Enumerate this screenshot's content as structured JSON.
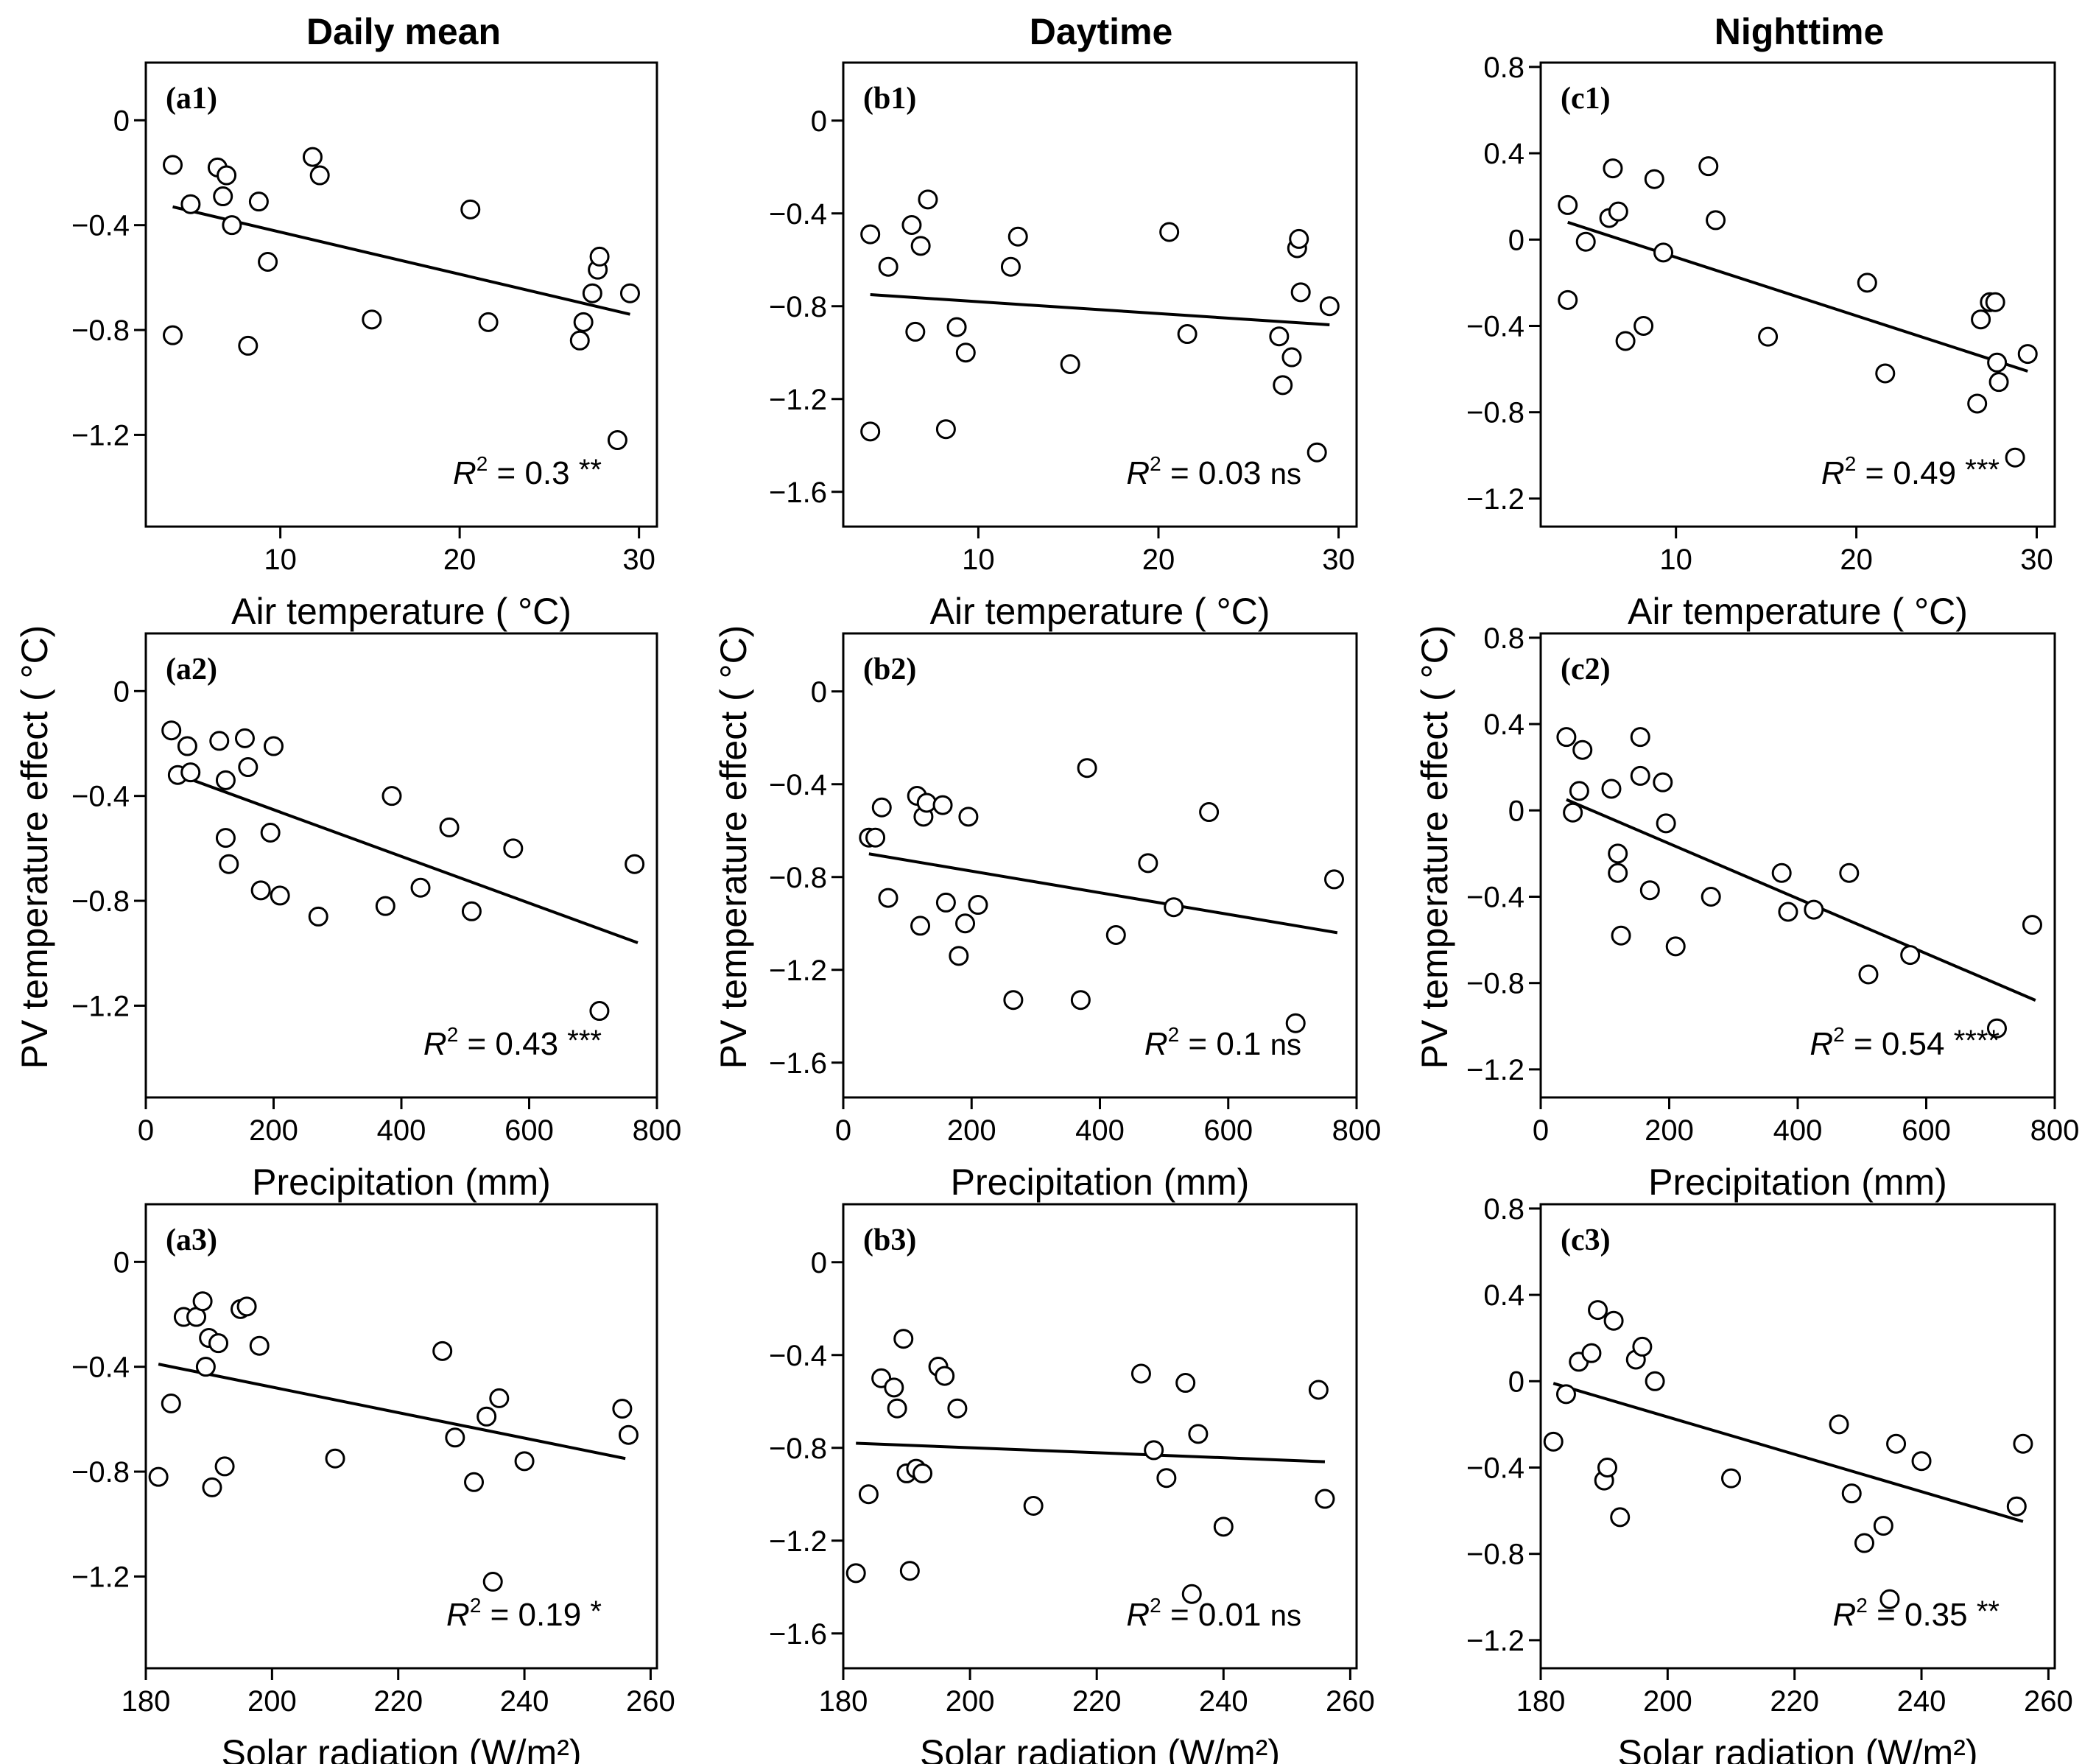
{
  "column_titles": [
    "Daily mean",
    "Daytime",
    "Nighttime"
  ],
  "y_axis_label": "PV temperature effect ( °C)",
  "x_axis_labels": {
    "air": "Air temperature ( °C)",
    "precip": "Precipitation (mm)",
    "solar": "Solar radiation (W/m²)"
  },
  "chart_data": [
    {
      "id": "a1",
      "label": "(a1)",
      "type": "scatter",
      "xvar": "air",
      "xlim": [
        2.5,
        31
      ],
      "xticks": [
        10,
        20,
        30
      ],
      "ylim": [
        -1.55,
        0.22
      ],
      "yticks": [
        0,
        -0.4,
        -0.8,
        -1.2
      ],
      "r2": "0.3",
      "sig": "**",
      "fit": {
        "x": [
          4,
          29.5
        ],
        "y": [
          -0.33,
          -0.74
        ]
      },
      "points": [
        [
          4,
          -0.17
        ],
        [
          4,
          -0.82
        ],
        [
          5,
          -0.32
        ],
        [
          6.5,
          -0.18
        ],
        [
          6.8,
          -0.29
        ],
        [
          7,
          -0.21
        ],
        [
          7.3,
          -0.4
        ],
        [
          8.2,
          -0.86
        ],
        [
          8.8,
          -0.31
        ],
        [
          9.3,
          -0.54
        ],
        [
          11.8,
          -0.14
        ],
        [
          12.2,
          -0.21
        ],
        [
          15.1,
          -0.76
        ],
        [
          20.6,
          -0.34
        ],
        [
          21.6,
          -0.77
        ],
        [
          26.7,
          -0.84
        ],
        [
          26.9,
          -0.77
        ],
        [
          27.4,
          -0.66
        ],
        [
          27.7,
          -0.57
        ],
        [
          27.8,
          -0.52
        ],
        [
          28.8,
          -1.22
        ],
        [
          29.5,
          -0.66
        ]
      ]
    },
    {
      "id": "b1",
      "label": "(b1)",
      "type": "scatter",
      "xvar": "air",
      "xlim": [
        2.5,
        31
      ],
      "xticks": [
        10,
        20,
        30
      ],
      "ylim": [
        -1.75,
        0.25
      ],
      "yticks": [
        0,
        -0.4,
        -0.8,
        -1.2,
        -1.6
      ],
      "r2": "0.03",
      "sig": "ns",
      "fit": {
        "x": [
          4,
          29.5
        ],
        "y": [
          -0.75,
          -0.88
        ]
      },
      "points": [
        [
          4,
          -0.49
        ],
        [
          4,
          -1.34
        ],
        [
          5,
          -0.63
        ],
        [
          6.3,
          -0.45
        ],
        [
          6.5,
          -0.91
        ],
        [
          6.8,
          -0.54
        ],
        [
          7.2,
          -0.34
        ],
        [
          8.2,
          -1.33
        ],
        [
          8.8,
          -0.89
        ],
        [
          9.3,
          -1.0
        ],
        [
          11.8,
          -0.63
        ],
        [
          12.2,
          -0.5
        ],
        [
          15.1,
          -1.05
        ],
        [
          20.6,
          -0.48
        ],
        [
          21.6,
          -0.92
        ],
        [
          26.7,
          -0.93
        ],
        [
          26.9,
          -1.14
        ],
        [
          27.4,
          -1.02
        ],
        [
          27.7,
          -0.55
        ],
        [
          27.8,
          -0.51
        ],
        [
          27.9,
          -0.74
        ],
        [
          28.8,
          -1.43
        ],
        [
          29.5,
          -0.8
        ]
      ]
    },
    {
      "id": "c1",
      "label": "(c1)",
      "type": "scatter",
      "xvar": "air",
      "xlim": [
        2.5,
        31
      ],
      "xticks": [
        10,
        20,
        30
      ],
      "ylim": [
        -1.33,
        0.82
      ],
      "yticks": [
        0.8,
        0.4,
        0,
        -0.4,
        -0.8,
        -1.2
      ],
      "r2": "0.49",
      "sig": "***",
      "fit": {
        "x": [
          4,
          29.5
        ],
        "y": [
          0.08,
          -0.61
        ]
      },
      "points": [
        [
          4,
          0.16
        ],
        [
          4,
          -0.28
        ],
        [
          5,
          -0.01
        ],
        [
          6.3,
          0.1
        ],
        [
          6.5,
          0.33
        ],
        [
          6.8,
          0.13
        ],
        [
          7.2,
          -0.47
        ],
        [
          8.2,
          -0.4
        ],
        [
          8.8,
          0.28
        ],
        [
          9.3,
          -0.06
        ],
        [
          11.8,
          0.34
        ],
        [
          12.2,
          0.09
        ],
        [
          15.1,
          -0.45
        ],
        [
          20.6,
          -0.2
        ],
        [
          21.6,
          -0.62
        ],
        [
          26.7,
          -0.76
        ],
        [
          26.9,
          -0.37
        ],
        [
          27.4,
          -0.29
        ],
        [
          27.7,
          -0.29
        ],
        [
          27.8,
          -0.57
        ],
        [
          27.9,
          -0.66
        ],
        [
          28.8,
          -1.01
        ],
        [
          29.5,
          -0.53
        ]
      ]
    },
    {
      "id": "a2",
      "label": "(a2)",
      "type": "scatter",
      "xvar": "precip",
      "xlim": [
        0,
        800
      ],
      "xticks": [
        0,
        200,
        400,
        600,
        800
      ],
      "ylim": [
        -1.55,
        0.22
      ],
      "yticks": [
        0,
        -0.4,
        -0.8,
        -1.2
      ],
      "r2": "0.43",
      "sig": "***",
      "fit": {
        "x": [
          40,
          770
        ],
        "y": [
          -0.31,
          -0.96
        ]
      },
      "points": [
        [
          40,
          -0.15
        ],
        [
          50,
          -0.32
        ],
        [
          65,
          -0.21
        ],
        [
          70,
          -0.31
        ],
        [
          115,
          -0.19
        ],
        [
          125,
          -0.34
        ],
        [
          125,
          -0.56
        ],
        [
          130,
          -0.66
        ],
        [
          155,
          -0.18
        ],
        [
          160,
          -0.29
        ],
        [
          180,
          -0.76
        ],
        [
          195,
          -0.54
        ],
        [
          200,
          -0.21
        ],
        [
          210,
          -0.78
        ],
        [
          270,
          -0.86
        ],
        [
          375,
          -0.82
        ],
        [
          385,
          -0.4
        ],
        [
          430,
          -0.75
        ],
        [
          475,
          -0.52
        ],
        [
          510,
          -0.84
        ],
        [
          575,
          -0.6
        ],
        [
          710,
          -1.22
        ],
        [
          765,
          -0.66
        ]
      ]
    },
    {
      "id": "b2",
      "label": "(b2)",
      "type": "scatter",
      "xvar": "precip",
      "xlim": [
        0,
        800
      ],
      "xticks": [
        0,
        200,
        400,
        600,
        800
      ],
      "ylim": [
        -1.75,
        0.25
      ],
      "yticks": [
        0,
        -0.4,
        -0.8,
        -1.2,
        -1.6
      ],
      "r2": "0.1",
      "sig": "ns",
      "fit": {
        "x": [
          40,
          770
        ],
        "y": [
          -0.7,
          -1.04
        ]
      },
      "points": [
        [
          40,
          -0.63
        ],
        [
          50,
          -0.63
        ],
        [
          60,
          -0.5
        ],
        [
          70,
          -0.89
        ],
        [
          115,
          -0.45
        ],
        [
          120,
          -1.01
        ],
        [
          125,
          -0.54
        ],
        [
          130,
          -0.48
        ],
        [
          155,
          -0.49
        ],
        [
          160,
          -0.91
        ],
        [
          180,
          -1.14
        ],
        [
          190,
          -1.0
        ],
        [
          195,
          -0.54
        ],
        [
          210,
          -0.92
        ],
        [
          265,
          -1.33
        ],
        [
          370,
          -1.33
        ],
        [
          380,
          -0.33
        ],
        [
          425,
          -1.05
        ],
        [
          475,
          -0.74
        ],
        [
          515,
          -0.93
        ],
        [
          570,
          -0.52
        ],
        [
          705,
          -1.43
        ],
        [
          765,
          -0.81
        ]
      ]
    },
    {
      "id": "c2",
      "label": "(c2)",
      "type": "scatter",
      "xvar": "precip",
      "xlim": [
        0,
        800
      ],
      "xticks": [
        0,
        200,
        400,
        600,
        800
      ],
      "ylim": [
        -1.33,
        0.82
      ],
      "yticks": [
        0.8,
        0.4,
        0,
        -0.4,
        -0.8,
        -1.2
      ],
      "r2": "0.54",
      "sig": "****",
      "fit": {
        "x": [
          40,
          770
        ],
        "y": [
          0.05,
          -0.88
        ]
      },
      "points": [
        [
          40,
          0.34
        ],
        [
          50,
          -0.01
        ],
        [
          60,
          0.09
        ],
        [
          65,
          0.28
        ],
        [
          110,
          0.1
        ],
        [
          120,
          -0.2
        ],
        [
          120,
          -0.29
        ],
        [
          125,
          -0.58
        ],
        [
          155,
          0.34
        ],
        [
          155,
          0.16
        ],
        [
          170,
          -0.37
        ],
        [
          190,
          0.13
        ],
        [
          195,
          -0.06
        ],
        [
          210,
          -0.63
        ],
        [
          265,
          -0.4
        ],
        [
          375,
          -0.29
        ],
        [
          385,
          -0.47
        ],
        [
          425,
          -0.46
        ],
        [
          480,
          -0.29
        ],
        [
          510,
          -0.76
        ],
        [
          575,
          -0.67
        ],
        [
          710,
          -1.01
        ],
        [
          765,
          -0.53
        ]
      ]
    },
    {
      "id": "a3",
      "label": "(a3)",
      "type": "scatter",
      "xvar": "solar",
      "xlim": [
        180,
        261
      ],
      "xticks": [
        180,
        200,
        220,
        240,
        260
      ],
      "ylim": [
        -1.55,
        0.22
      ],
      "yticks": [
        0,
        -0.4,
        -0.8,
        -1.2
      ],
      "r2": "0.19",
      "sig": "*",
      "fit": {
        "x": [
          182,
          256
        ],
        "y": [
          -0.39,
          -0.75
        ]
      },
      "points": [
        [
          182,
          -0.82
        ],
        [
          184,
          -0.54
        ],
        [
          186,
          -0.21
        ],
        [
          188,
          -0.21
        ],
        [
          189,
          -0.15
        ],
        [
          189.5,
          -0.4
        ],
        [
          190,
          -0.29
        ],
        [
          190.5,
          -0.86
        ],
        [
          191.5,
          -0.31
        ],
        [
          192.5,
          -0.78
        ],
        [
          195,
          -0.18
        ],
        [
          196,
          -0.17
        ],
        [
          198,
          -0.32
        ],
        [
          210,
          -0.75
        ],
        [
          227,
          -0.34
        ],
        [
          229,
          -0.67
        ],
        [
          232,
          -0.84
        ],
        [
          234,
          -0.59
        ],
        [
          235,
          -1.22
        ],
        [
          236,
          -0.52
        ],
        [
          240,
          -0.76
        ],
        [
          255.5,
          -0.56
        ],
        [
          256.5,
          -0.66
        ]
      ]
    },
    {
      "id": "b3",
      "label": "(b3)",
      "type": "scatter",
      "xvar": "solar",
      "xlim": [
        180,
        261
      ],
      "xticks": [
        180,
        200,
        220,
        240,
        260
      ],
      "ylim": [
        -1.75,
        0.25
      ],
      "yticks": [
        0,
        -0.4,
        -0.8,
        -1.2,
        -1.6
      ],
      "r2": "0.01",
      "sig": "ns",
      "fit": {
        "x": [
          182,
          256
        ],
        "y": [
          -0.78,
          -0.86
        ]
      },
      "points": [
        [
          182,
          -1.34
        ],
        [
          184,
          -1.0
        ],
        [
          186,
          -0.5
        ],
        [
          188,
          -0.54
        ],
        [
          188.5,
          -0.63
        ],
        [
          189.5,
          -0.33
        ],
        [
          190,
          -0.91
        ],
        [
          190.5,
          -1.33
        ],
        [
          191.5,
          -0.89
        ],
        [
          192.5,
          -0.91
        ],
        [
          195,
          -0.45
        ],
        [
          196,
          -0.49
        ],
        [
          198,
          -0.63
        ],
        [
          210,
          -1.05
        ],
        [
          227,
          -0.48
        ],
        [
          229,
          -0.81
        ],
        [
          231,
          -0.93
        ],
        [
          234,
          -0.52
        ],
        [
          235,
          -1.43
        ],
        [
          236,
          -0.74
        ],
        [
          240,
          -1.14
        ],
        [
          255,
          -0.55
        ],
        [
          256,
          -1.02
        ]
      ]
    },
    {
      "id": "c3",
      "label": "(c3)",
      "type": "scatter",
      "xvar": "solar",
      "xlim": [
        180,
        261
      ],
      "xticks": [
        180,
        200,
        220,
        240,
        260
      ],
      "ylim": [
        -1.33,
        0.82
      ],
      "yticks": [
        0.8,
        0.4,
        0,
        -0.4,
        -0.8,
        -1.2
      ],
      "r2": "0.35",
      "sig": "**",
      "fit": {
        "x": [
          182,
          256
        ],
        "y": [
          -0.01,
          -0.65
        ]
      },
      "points": [
        [
          182,
          -0.28
        ],
        [
          184,
          -0.06
        ],
        [
          186,
          0.09
        ],
        [
          188,
          0.13
        ],
        [
          189,
          0.33
        ],
        [
          190,
          -0.46
        ],
        [
          190.5,
          -0.4
        ],
        [
          191.5,
          0.28
        ],
        [
          192.5,
          -0.63
        ],
        [
          195,
          0.1
        ],
        [
          196,
          0.16
        ],
        [
          198,
          0.0
        ],
        [
          210,
          -0.45
        ],
        [
          227,
          -0.2
        ],
        [
          229,
          -0.52
        ],
        [
          231,
          -0.75
        ],
        [
          234,
          -0.67
        ],
        [
          235,
          -1.01
        ],
        [
          236,
          -0.29
        ],
        [
          240,
          -0.37
        ],
        [
          255,
          -0.58
        ],
        [
          256,
          -0.29
        ]
      ]
    }
  ]
}
